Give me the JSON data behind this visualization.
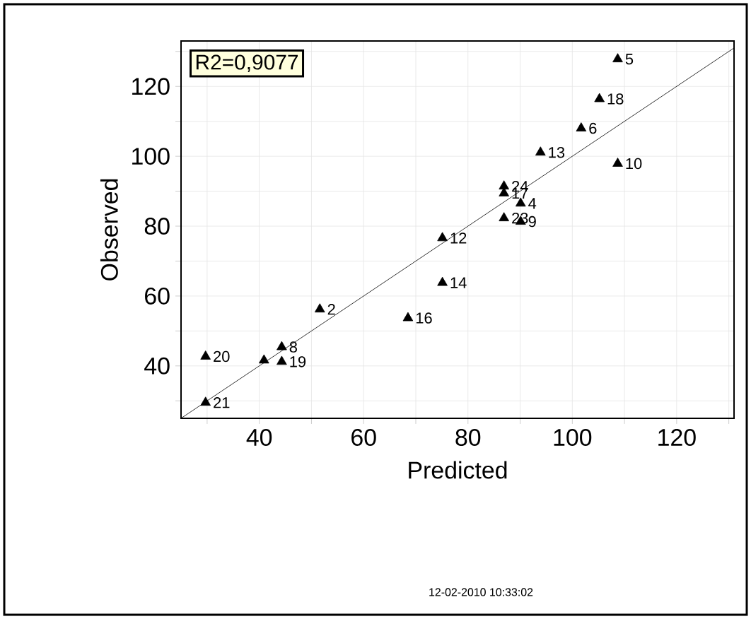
{
  "chart_data": {
    "type": "scatter",
    "xlabel": "Predicted",
    "ylabel": "Observed",
    "xlim": [
      25,
      131
    ],
    "ylim": [
      25,
      133
    ],
    "xticks": [
      {
        "value": 30,
        "label": null
      },
      40,
      {
        "value": 50,
        "label": null
      },
      60,
      {
        "value": 70,
        "label": null
      },
      80,
      {
        "value": 90,
        "label": null
      },
      100,
      {
        "value": 110,
        "label": null
      },
      120,
      {
        "value": 130,
        "label": null
      }
    ],
    "yticks": [
      {
        "value": 30,
        "label": null
      },
      40,
      {
        "value": 50,
        "label": null
      },
      60,
      {
        "value": 70,
        "label": null
      },
      80,
      {
        "value": 90,
        "label": null
      },
      100,
      {
        "value": 110,
        "label": null
      },
      120,
      {
        "value": 130,
        "label": null
      }
    ],
    "grid": true,
    "marker": "triangle",
    "series": [
      {
        "color": "#000000",
        "x": [
          108.7,
          105.2,
          101.7,
          93.9,
          108.7,
          86.9,
          86.9,
          90.1,
          86.9,
          90.1,
          75.1,
          75.1,
          68.5,
          51.6,
          44.3,
          44.3,
          40.9,
          29.7,
          29.7
        ],
        "values": [
          127.8,
          116.4,
          108,
          101.1,
          97.9,
          91.4,
          89.4,
          86.5,
          82.3,
          81.3,
          76.6,
          63.8,
          53.7,
          56.2,
          45.4,
          41.2,
          41.6,
          42.7,
          29.5
        ]
      },
      {
        "type": "line",
        "color": "#000000",
        "marker": "none",
        "x": [
          25,
          131
        ],
        "values": [
          25,
          131
        ]
      }
    ],
    "annotations": [
      "R2=0,9077",
      "12-02-2010 10:33:02",
      {
        "text": "5",
        "x": 108.7,
        "y": 127.8
      },
      {
        "text": "18",
        "x": 105.2,
        "y": 116.4
      },
      {
        "text": "6",
        "x": 101.7,
        "y": 108
      },
      {
        "text": "13",
        "x": 93.9,
        "y": 101.1
      },
      {
        "text": "10",
        "x": 108.7,
        "y": 97.9
      },
      {
        "text": "24",
        "x": 86.9,
        "y": 91.4
      },
      {
        "text": "17",
        "x": 86.9,
        "y": 89.4
      },
      {
        "text": "4",
        "x": 90.1,
        "y": 86.5
      },
      {
        "text": "23",
        "x": 86.9,
        "y": 82.3
      },
      {
        "text": "9",
        "x": 90.1,
        "y": 81.3
      },
      {
        "text": "12",
        "x": 75.1,
        "y": 76.6
      },
      {
        "text": "14",
        "x": 75.1,
        "y": 63.8
      },
      {
        "text": "16",
        "x": 68.5,
        "y": 53.7
      },
      {
        "text": "2",
        "x": 51.6,
        "y": 56.2
      },
      {
        "text": "8",
        "x": 44.3,
        "y": 45.4
      },
      {
        "text": "19",
        "x": 44.3,
        "y": 41.2
      },
      {
        "text": "20",
        "x": 29.7,
        "y": 42.7
      },
      {
        "text": "21",
        "x": 29.7,
        "y": 29.5
      }
    ]
  }
}
